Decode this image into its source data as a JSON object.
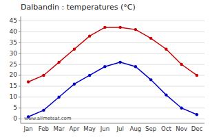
{
  "chart_data": {
    "type": "line",
    "title": "Dalbandin : temperatures (°C)",
    "categories": [
      "Jan",
      "Feb",
      "Mar",
      "Apr",
      "May",
      "Jun",
      "Jul",
      "Aug",
      "Sep",
      "Oct",
      "Nov",
      "Dec"
    ],
    "series": [
      {
        "color": "#cc0000",
        "values": [
          17,
          20,
          26,
          32,
          38,
          42,
          42,
          41,
          37,
          32,
          25,
          20
        ]
      },
      {
        "color": "#0000cc",
        "values": [
          1,
          4,
          10,
          16,
          20,
          24,
          26,
          24,
          18,
          11,
          5,
          2
        ]
      }
    ],
    "ylim": [
      -2,
      47
    ],
    "yticks": [
      0,
      5,
      10,
      15,
      20,
      25,
      30,
      35,
      40,
      45
    ],
    "grid": true,
    "marker": "circle",
    "line_style": "solid",
    "annotations": [
      "www.allmetsat.com"
    ]
  }
}
